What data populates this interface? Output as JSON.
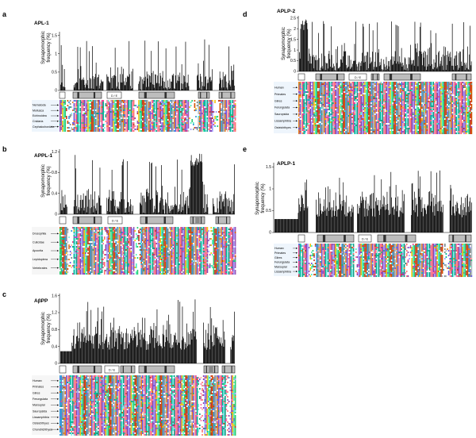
{
  "figure": {
    "y_axis_label_line1": "Synapomorphic",
    "y_axis_label_line2": "frequency (%)",
    "domain_box_label": "D / E",
    "panels": [
      {
        "key": "a",
        "label": "a",
        "title": "APL-1",
        "y_ticks": [
          "0",
          "0.5",
          "1",
          "1.5"
        ],
        "y_max": 1.6,
        "taxa": [
          "Nematoda",
          "Mollusca",
          "Echinoidea",
          "Cnidaria",
          "Cephalochordata"
        ],
        "has_grey_label": false
      },
      {
        "key": "b",
        "label": "b",
        "title": "APPL-1",
        "y_ticks": [
          "0",
          "0.4",
          "0.8",
          "1.2"
        ],
        "y_max": 1.25,
        "taxa": [
          "Drosophila",
          "Culicidae",
          "Apocrita",
          "Lepidoptera",
          "Vertebrates"
        ],
        "has_grey_label": true
      },
      {
        "key": "c",
        "label": "c",
        "title": "AβPP",
        "y_ticks": [
          "0",
          "0.4",
          "0.8",
          "1.2",
          "1.6"
        ],
        "y_max": 1.65,
        "taxa": [
          "Human",
          "Primates",
          "Glires",
          "Ferungulata",
          "Marsupial",
          "Sauropsida",
          "Lissamphibia",
          "Osteichthyes",
          "Chondrichthyes"
        ],
        "has_grey_label": true
      },
      {
        "key": "d",
        "label": "d",
        "title": "APLP-2",
        "y_ticks": [
          "0",
          "0.5",
          "1",
          "1.5",
          "2",
          "2.5"
        ],
        "y_max": 2.6,
        "taxa": [
          "Human",
          "Primates",
          "Glires",
          "Ferungulata",
          "Sauropsida",
          "Lissamphibia",
          "Osteichthyes"
        ],
        "has_grey_label": false
      },
      {
        "key": "e",
        "label": "e",
        "title": "APLP-1",
        "y_ticks": [
          "0",
          "0.5",
          "1",
          "1.5"
        ],
        "y_max": 1.6,
        "taxa": [
          "Human",
          "Primates",
          "Glires",
          "Ferungulata",
          "Marsupial",
          "Lissamphibia"
        ],
        "has_grey_label": false
      }
    ]
  }
}
